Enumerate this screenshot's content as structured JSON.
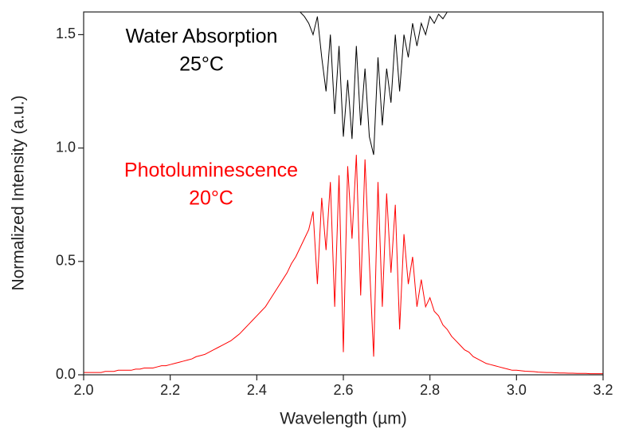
{
  "chart_data": {
    "type": "line",
    "xlabel": "Wavelength (µm)",
    "ylabel": "Normalized Intensity (a.u.)",
    "xlim": [
      2.0,
      3.2
    ],
    "ylim": [
      0,
      1.6
    ],
    "xticks": [
      {
        "value": 2.0,
        "label": "2.0"
      },
      {
        "value": 2.2,
        "label": "2.2"
      },
      {
        "value": 2.4,
        "label": "2.4"
      },
      {
        "value": 2.6,
        "label": "2.6"
      },
      {
        "value": 2.8,
        "label": "2.8"
      },
      {
        "value": 3.0,
        "label": "3.0"
      },
      {
        "value": 3.2,
        "label": "3.2"
      }
    ],
    "yticks": [
      {
        "value": 0,
        "label": "0.0"
      },
      {
        "value": 0.5,
        "label": "0.5"
      },
      {
        "value": 1.0,
        "label": "1.0"
      },
      {
        "value": 1.5,
        "label": "1.5"
      }
    ],
    "annotations": [
      {
        "lines": [
          "Water Absorption",
          "25°C"
        ],
        "color": "#000000"
      },
      {
        "lines": [
          "Photoluminescence",
          "20°C"
        ],
        "color": "#ff0000"
      }
    ],
    "series": [
      {
        "color": "#000000",
        "x": [
          2.0,
          2.5,
          2.51,
          2.52,
          2.53,
          2.54,
          2.55,
          2.56,
          2.57,
          2.58,
          2.59,
          2.6,
          2.61,
          2.62,
          2.63,
          2.64,
          2.65,
          2.66,
          2.67,
          2.68,
          2.69,
          2.7,
          2.71,
          2.72,
          2.73,
          2.74,
          2.75,
          2.76,
          2.77,
          2.78,
          2.79,
          2.8,
          2.81,
          2.82,
          2.83,
          2.84,
          2.85,
          3.2
        ],
        "values": [
          1.6,
          1.6,
          1.58,
          1.55,
          1.5,
          1.58,
          1.4,
          1.25,
          1.5,
          1.15,
          1.45,
          1.05,
          1.3,
          1.04,
          1.45,
          1.1,
          1.35,
          1.05,
          0.97,
          1.4,
          1.1,
          1.35,
          1.2,
          1.5,
          1.25,
          1.5,
          1.4,
          1.55,
          1.45,
          1.55,
          1.5,
          1.58,
          1.55,
          1.59,
          1.57,
          1.6,
          1.6,
          1.6
        ]
      },
      {
        "color": "#ff0000",
        "x": [
          2.0,
          2.01,
          2.02,
          2.03,
          2.04,
          2.05,
          2.06,
          2.07,
          2.08,
          2.09,
          2.1,
          2.11,
          2.12,
          2.13,
          2.14,
          2.15,
          2.16,
          2.17,
          2.18,
          2.19,
          2.2,
          2.21,
          2.22,
          2.23,
          2.24,
          2.25,
          2.26,
          2.27,
          2.28,
          2.29,
          2.3,
          2.31,
          2.32,
          2.33,
          2.34,
          2.35,
          2.36,
          2.37,
          2.38,
          2.39,
          2.4,
          2.41,
          2.42,
          2.43,
          2.44,
          2.45,
          2.46,
          2.47,
          2.48,
          2.49,
          2.5,
          2.51,
          2.52,
          2.53,
          2.54,
          2.55,
          2.56,
          2.57,
          2.58,
          2.59,
          2.6,
          2.61,
          2.62,
          2.63,
          2.64,
          2.65,
          2.66,
          2.67,
          2.68,
          2.69,
          2.7,
          2.71,
          2.72,
          2.73,
          2.74,
          2.75,
          2.76,
          2.77,
          2.78,
          2.79,
          2.8,
          2.81,
          2.82,
          2.83,
          2.84,
          2.85,
          2.86,
          2.87,
          2.88,
          2.89,
          2.9,
          2.91,
          2.92,
          2.93,
          2.94,
          2.95,
          2.96,
          2.97,
          2.98,
          2.99,
          3.0,
          3.01,
          3.02,
          3.03,
          3.04,
          3.05,
          3.06,
          3.07,
          3.08,
          3.09,
          3.1,
          3.11,
          3.12,
          3.13,
          3.14,
          3.15,
          3.16,
          3.17,
          3.18,
          3.19,
          3.2
        ],
        "values": [
          0.01,
          0.01,
          0.01,
          0.01,
          0.01,
          0.015,
          0.015,
          0.015,
          0.02,
          0.02,
          0.02,
          0.02,
          0.025,
          0.025,
          0.03,
          0.03,
          0.03,
          0.035,
          0.04,
          0.04,
          0.045,
          0.05,
          0.055,
          0.06,
          0.065,
          0.07,
          0.08,
          0.085,
          0.09,
          0.1,
          0.11,
          0.12,
          0.13,
          0.14,
          0.15,
          0.165,
          0.18,
          0.2,
          0.22,
          0.24,
          0.26,
          0.28,
          0.3,
          0.33,
          0.36,
          0.39,
          0.42,
          0.45,
          0.49,
          0.52,
          0.56,
          0.6,
          0.64,
          0.72,
          0.4,
          0.78,
          0.55,
          0.85,
          0.3,
          0.88,
          0.1,
          0.92,
          0.6,
          0.97,
          0.35,
          0.95,
          0.5,
          0.08,
          0.85,
          0.3,
          0.8,
          0.45,
          0.75,
          0.2,
          0.62,
          0.4,
          0.52,
          0.3,
          0.42,
          0.3,
          0.34,
          0.28,
          0.26,
          0.22,
          0.2,
          0.17,
          0.15,
          0.13,
          0.11,
          0.1,
          0.08,
          0.07,
          0.06,
          0.05,
          0.045,
          0.04,
          0.035,
          0.03,
          0.025,
          0.02,
          0.02,
          0.018,
          0.016,
          0.015,
          0.014,
          0.012,
          0.011,
          0.01,
          0.01,
          0.009,
          0.008,
          0.008,
          0.007,
          0.007,
          0.006,
          0.006,
          0.006,
          0.005,
          0.005,
          0.005,
          0.005
        ]
      }
    ]
  }
}
